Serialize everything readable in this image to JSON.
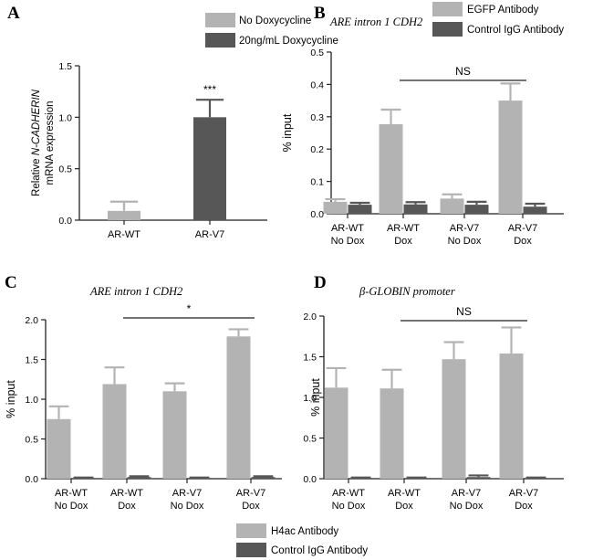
{
  "legends": {
    "A": [
      {
        "label": "No Doxycycline",
        "color": "#b3b3b3"
      },
      {
        "label": "20ng/mL Doxycycline",
        "color": "#575757"
      }
    ],
    "B": [
      {
        "label": "EGFP Antibody",
        "color": "#b3b3b3"
      },
      {
        "label": "Control IgG Antibody",
        "color": "#575757"
      }
    ],
    "CD": [
      {
        "label": "H4ac Antibody",
        "color": "#b3b3b3"
      },
      {
        "label": "Control IgG Antibody",
        "color": "#575757"
      }
    ]
  },
  "chart_data": [
    {
      "panel": "A",
      "type": "bar",
      "title": "",
      "ylabel_prefix": "Relative ",
      "ylabel_gene": "N-CADHERIN",
      "ylabel_line2": "mRNA expression",
      "ylim": [
        0,
        1.5
      ],
      "yticks": [
        "0.0",
        "0.5",
        "1.0",
        "1.5"
      ],
      "categories": [
        "AR-WT",
        "AR-V7"
      ],
      "series": [
        {
          "name": "No Doxycycline",
          "color": "#b3b3b3",
          "values": [
            0.09,
            null
          ],
          "errors": [
            0.09,
            null
          ]
        },
        {
          "name": "20ng/mL Doxycycline",
          "color": "#575757",
          "values": [
            null,
            1.0
          ],
          "errors": [
            null,
            0.17
          ]
        }
      ],
      "annotations": [
        {
          "text": "***",
          "category": 1
        }
      ]
    },
    {
      "panel": "B",
      "type": "bar",
      "title": "ARE intron 1 CDH2",
      "ylabel": "% input",
      "ylim": [
        0,
        0.5
      ],
      "yticks": [
        "0.0",
        "0.1",
        "0.2",
        "0.3",
        "0.4",
        "0.5"
      ],
      "categories": [
        [
          "AR-WT",
          "No Dox"
        ],
        [
          "AR-WT",
          "Dox"
        ],
        [
          "AR-V7",
          "No Dox"
        ],
        [
          "AR-V7",
          "Dox"
        ]
      ],
      "series": [
        {
          "name": "EGFP Antibody",
          "color": "#b3b3b3",
          "values": [
            0.037,
            0.277,
            0.047,
            0.35
          ],
          "errors": [
            0.008,
            0.045,
            0.013,
            0.053
          ]
        },
        {
          "name": "Control IgG Antibody",
          "color": "#575757",
          "values": [
            0.028,
            0.029,
            0.028,
            0.022
          ],
          "errors": [
            0.006,
            0.007,
            0.009,
            0.009
          ]
        }
      ],
      "bracket": {
        "from": 1,
        "to": 3,
        "label": "NS"
      }
    },
    {
      "panel": "C",
      "type": "bar",
      "title": "ARE intron 1 CDH2",
      "ylabel": "% input",
      "ylim": [
        0,
        2.0
      ],
      "yticks": [
        "0.0",
        "0.5",
        "1.0",
        "1.5",
        "2.0"
      ],
      "categories": [
        [
          "AR-WT",
          "No Dox"
        ],
        [
          "AR-WT",
          "Dox"
        ],
        [
          "AR-V7",
          "No Dox"
        ],
        [
          "AR-V7",
          "Dox"
        ]
      ],
      "series": [
        {
          "name": "H4ac Antibody",
          "color": "#b3b3b3",
          "values": [
            0.75,
            1.19,
            1.1,
            1.79
          ],
          "errors": [
            0.16,
            0.21,
            0.1,
            0.09
          ]
        },
        {
          "name": "Control IgG Antibody",
          "color": "#575757",
          "values": [
            0.01,
            0.02,
            0.01,
            0.02
          ],
          "errors": [
            0.005,
            0.01,
            0.005,
            0.01
          ]
        }
      ],
      "bracket": {
        "from": 1,
        "to": 3,
        "label": "*"
      }
    },
    {
      "panel": "D",
      "type": "bar",
      "title": "β-GLOBIN promoter",
      "ylabel": "% input",
      "ylim": [
        0,
        2.0
      ],
      "yticks": [
        "0.0",
        "0.5",
        "1.0",
        "1.5",
        "2.0"
      ],
      "categories": [
        [
          "AR-WT",
          "No Dox"
        ],
        [
          "AR-WT",
          "Dox"
        ],
        [
          "AR-V7",
          "No Dox"
        ],
        [
          "AR-V7",
          "Dox"
        ]
      ],
      "series": [
        {
          "name": "H4ac Antibody",
          "color": "#b3b3b3",
          "values": [
            1.12,
            1.11,
            1.47,
            1.54
          ],
          "errors": [
            0.24,
            0.23,
            0.21,
            0.32
          ]
        },
        {
          "name": "Control IgG Antibody",
          "color": "#575757",
          "values": [
            0.01,
            0.01,
            0.02,
            0.01
          ],
          "errors": [
            0.005,
            0.005,
            0.02,
            0.005
          ]
        }
      ],
      "bracket": {
        "from": 1,
        "to": 3,
        "label": "NS"
      }
    }
  ]
}
